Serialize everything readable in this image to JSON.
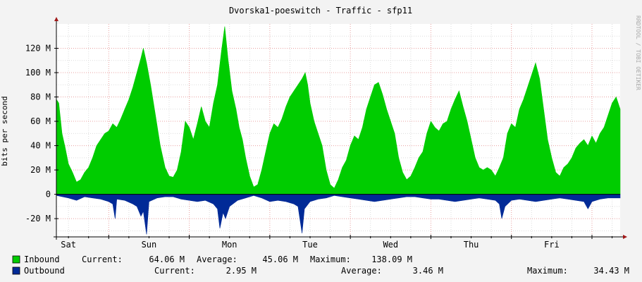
{
  "chart_data": {
    "type": "area",
    "title": "Dvorska1-poeswitch - Traffic - sfp11",
    "ylabel": "bits per second",
    "watermark": "RRDTOOL / TOBI OETIKER",
    "ylim": [
      -35,
      140
    ],
    "yticks": [
      {
        "value": 120,
        "label": "120 M"
      },
      {
        "value": 100,
        "label": "100 M"
      },
      {
        "value": 80,
        "label": "80 M"
      },
      {
        "value": 60,
        "label": "60 M"
      },
      {
        "value": 40,
        "label": "40 M"
      },
      {
        "value": 20,
        "label": "20 M"
      },
      {
        "value": 0,
        "label": "0"
      },
      {
        "value": -20,
        "label": "-20 M"
      }
    ],
    "x_days": [
      "Sat",
      "Sun",
      "Mon",
      "Tue",
      "Wed",
      "Thu",
      "Fri"
    ],
    "x_start_day": 0.35,
    "x_end_day": 7.35,
    "grid": true,
    "colors": {
      "inbound": "#00cc00",
      "outbound": "#002a97",
      "grid_major": "#e8a0a0",
      "grid_minor": "#dcdcdc",
      "background": "#ffffff",
      "frame": "#f3f3f3"
    },
    "series": [
      {
        "name": "Inbound",
        "points": [
          [
            0.35,
            78
          ],
          [
            0.38,
            75
          ],
          [
            0.42,
            50
          ],
          [
            0.46,
            38
          ],
          [
            0.5,
            25
          ],
          [
            0.55,
            18
          ],
          [
            0.6,
            10
          ],
          [
            0.65,
            12
          ],
          [
            0.7,
            18
          ],
          [
            0.75,
            22
          ],
          [
            0.8,
            30
          ],
          [
            0.85,
            40
          ],
          [
            0.9,
            45
          ],
          [
            0.95,
            50
          ],
          [
            1.0,
            52
          ],
          [
            1.05,
            58
          ],
          [
            1.1,
            55
          ],
          [
            1.15,
            62
          ],
          [
            1.2,
            70
          ],
          [
            1.25,
            78
          ],
          [
            1.3,
            88
          ],
          [
            1.35,
            100
          ],
          [
            1.4,
            112
          ],
          [
            1.43,
            120
          ],
          [
            1.47,
            108
          ],
          [
            1.52,
            90
          ],
          [
            1.58,
            65
          ],
          [
            1.64,
            40
          ],
          [
            1.7,
            22
          ],
          [
            1.75,
            15
          ],
          [
            1.8,
            14
          ],
          [
            1.85,
            20
          ],
          [
            1.9,
            35
          ],
          [
            1.95,
            60
          ],
          [
            2.0,
            55
          ],
          [
            2.05,
            45
          ],
          [
            2.1,
            58
          ],
          [
            2.15,
            72
          ],
          [
            2.2,
            60
          ],
          [
            2.25,
            55
          ],
          [
            2.3,
            75
          ],
          [
            2.35,
            90
          ],
          [
            2.4,
            118
          ],
          [
            2.44,
            138
          ],
          [
            2.48,
            112
          ],
          [
            2.53,
            85
          ],
          [
            2.58,
            70
          ],
          [
            2.62,
            55
          ],
          [
            2.66,
            45
          ],
          [
            2.7,
            30
          ],
          [
            2.75,
            15
          ],
          [
            2.8,
            6
          ],
          [
            2.85,
            8
          ],
          [
            2.9,
            20
          ],
          [
            2.95,
            35
          ],
          [
            3.0,
            50
          ],
          [
            3.05,
            58
          ],
          [
            3.1,
            55
          ],
          [
            3.15,
            62
          ],
          [
            3.2,
            72
          ],
          [
            3.25,
            80
          ],
          [
            3.3,
            85
          ],
          [
            3.35,
            90
          ],
          [
            3.4,
            95
          ],
          [
            3.44,
            100
          ],
          [
            3.47,
            90
          ],
          [
            3.5,
            75
          ],
          [
            3.55,
            60
          ],
          [
            3.6,
            50
          ],
          [
            3.65,
            40
          ],
          [
            3.7,
            20
          ],
          [
            3.75,
            8
          ],
          [
            3.8,
            5
          ],
          [
            3.85,
            12
          ],
          [
            3.9,
            22
          ],
          [
            3.95,
            28
          ],
          [
            4.0,
            40
          ],
          [
            4.05,
            48
          ],
          [
            4.1,
            45
          ],
          [
            4.15,
            55
          ],
          [
            4.2,
            70
          ],
          [
            4.25,
            80
          ],
          [
            4.3,
            90
          ],
          [
            4.35,
            92
          ],
          [
            4.4,
            82
          ],
          [
            4.45,
            70
          ],
          [
            4.5,
            60
          ],
          [
            4.55,
            50
          ],
          [
            4.6,
            30
          ],
          [
            4.65,
            18
          ],
          [
            4.7,
            12
          ],
          [
            4.75,
            15
          ],
          [
            4.8,
            22
          ],
          [
            4.85,
            30
          ],
          [
            4.9,
            35
          ],
          [
            4.95,
            50
          ],
          [
            5.0,
            60
          ],
          [
            5.05,
            55
          ],
          [
            5.1,
            52
          ],
          [
            5.15,
            58
          ],
          [
            5.2,
            60
          ],
          [
            5.25,
            70
          ],
          [
            5.3,
            78
          ],
          [
            5.35,
            85
          ],
          [
            5.4,
            72
          ],
          [
            5.45,
            60
          ],
          [
            5.5,
            45
          ],
          [
            5.55,
            30
          ],
          [
            5.6,
            22
          ],
          [
            5.65,
            20
          ],
          [
            5.7,
            22
          ],
          [
            5.75,
            20
          ],
          [
            5.8,
            15
          ],
          [
            5.85,
            22
          ],
          [
            5.9,
            30
          ],
          [
            5.95,
            50
          ],
          [
            6.0,
            58
          ],
          [
            6.05,
            55
          ],
          [
            6.1,
            70
          ],
          [
            6.15,
            78
          ],
          [
            6.2,
            88
          ],
          [
            6.25,
            98
          ],
          [
            6.3,
            108
          ],
          [
            6.35,
            95
          ],
          [
            6.4,
            70
          ],
          [
            6.45,
            45
          ],
          [
            6.5,
            30
          ],
          [
            6.55,
            18
          ],
          [
            6.6,
            15
          ],
          [
            6.65,
            22
          ],
          [
            6.7,
            25
          ],
          [
            6.75,
            30
          ],
          [
            6.8,
            38
          ],
          [
            6.85,
            42
          ],
          [
            6.9,
            45
          ],
          [
            6.95,
            40
          ],
          [
            7.0,
            48
          ],
          [
            7.05,
            42
          ],
          [
            7.1,
            50
          ],
          [
            7.15,
            55
          ],
          [
            7.2,
            65
          ],
          [
            7.25,
            75
          ],
          [
            7.3,
            80
          ],
          [
            7.35,
            70
          ]
        ]
      },
      {
        "name": "Outbound",
        "points": [
          [
            0.35,
            -1
          ],
          [
            0.5,
            -3
          ],
          [
            0.6,
            -5
          ],
          [
            0.7,
            -2
          ],
          [
            0.8,
            -3
          ],
          [
            0.9,
            -4
          ],
          [
            1.0,
            -6
          ],
          [
            1.05,
            -8
          ],
          [
            1.08,
            -20
          ],
          [
            1.1,
            -4
          ],
          [
            1.2,
            -5
          ],
          [
            1.3,
            -8
          ],
          [
            1.35,
            -10
          ],
          [
            1.4,
            -18
          ],
          [
            1.43,
            -14
          ],
          [
            1.47,
            -33
          ],
          [
            1.5,
            -6
          ],
          [
            1.6,
            -3
          ],
          [
            1.7,
            -2
          ],
          [
            1.8,
            -2
          ],
          [
            1.9,
            -4
          ],
          [
            2.0,
            -5
          ],
          [
            2.1,
            -6
          ],
          [
            2.2,
            -5
          ],
          [
            2.3,
            -8
          ],
          [
            2.35,
            -12
          ],
          [
            2.38,
            -28
          ],
          [
            2.42,
            -15
          ],
          [
            2.45,
            -20
          ],
          [
            2.5,
            -10
          ],
          [
            2.6,
            -5
          ],
          [
            2.7,
            -3
          ],
          [
            2.8,
            -1
          ],
          [
            2.9,
            -3
          ],
          [
            3.0,
            -6
          ],
          [
            3.1,
            -5
          ],
          [
            3.2,
            -6
          ],
          [
            3.3,
            -8
          ],
          [
            3.35,
            -10
          ],
          [
            3.4,
            -32
          ],
          [
            3.43,
            -12
          ],
          [
            3.5,
            -6
          ],
          [
            3.6,
            -4
          ],
          [
            3.7,
            -3
          ],
          [
            3.8,
            -1
          ],
          [
            3.9,
            -2
          ],
          [
            4.0,
            -3
          ],
          [
            4.1,
            -4
          ],
          [
            4.2,
            -5
          ],
          [
            4.3,
            -6
          ],
          [
            4.4,
            -5
          ],
          [
            4.5,
            -4
          ],
          [
            4.6,
            -3
          ],
          [
            4.7,
            -2
          ],
          [
            4.8,
            -2
          ],
          [
            4.9,
            -3
          ],
          [
            5.0,
            -4
          ],
          [
            5.1,
            -4
          ],
          [
            5.2,
            -5
          ],
          [
            5.3,
            -6
          ],
          [
            5.4,
            -5
          ],
          [
            5.5,
            -4
          ],
          [
            5.6,
            -3
          ],
          [
            5.7,
            -4
          ],
          [
            5.8,
            -5
          ],
          [
            5.85,
            -8
          ],
          [
            5.88,
            -20
          ],
          [
            5.92,
            -10
          ],
          [
            6.0,
            -5
          ],
          [
            6.1,
            -4
          ],
          [
            6.2,
            -5
          ],
          [
            6.3,
            -6
          ],
          [
            6.4,
            -5
          ],
          [
            6.5,
            -4
          ],
          [
            6.6,
            -3
          ],
          [
            6.7,
            -4
          ],
          [
            6.8,
            -5
          ],
          [
            6.9,
            -6
          ],
          [
            6.95,
            -12
          ],
          [
            7.0,
            -6
          ],
          [
            7.1,
            -4
          ],
          [
            7.2,
            -3
          ],
          [
            7.3,
            -3
          ],
          [
            7.35,
            -3
          ]
        ]
      }
    ]
  },
  "legend": {
    "inbound": {
      "name": "Inbound",
      "current_label": "Current:",
      "current_value": "64.06 M",
      "average_label": "Average:",
      "average_value": "45.06 M",
      "maximum_label": "Maximum:",
      "maximum_value": "138.09 M"
    },
    "outbound": {
      "name": "Outbound",
      "current_label": "Current:",
      "current_value": "2.95 M",
      "average_label": "Average:",
      "average_value": "3.46 M",
      "maximum_label": "Maximum:",
      "maximum_value": "34.43 M"
    }
  }
}
